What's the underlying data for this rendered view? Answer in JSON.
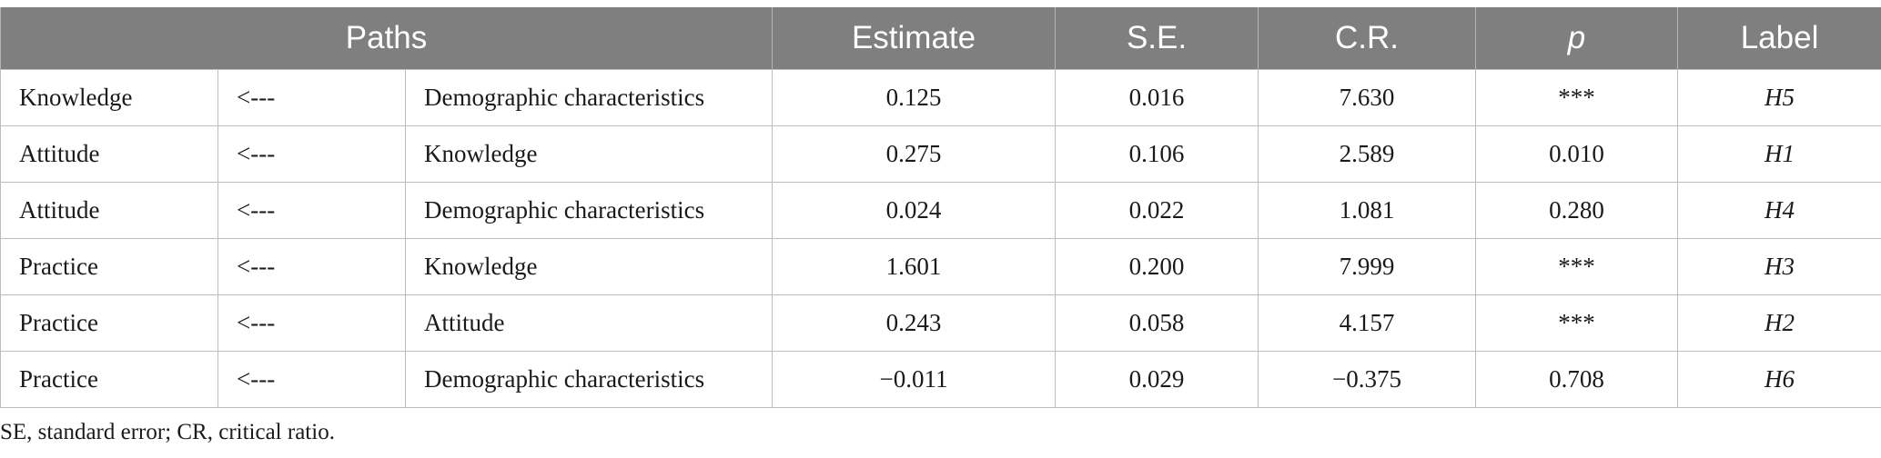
{
  "table": {
    "headers": {
      "paths": "Paths",
      "estimate": "Estimate",
      "se": "S.E.",
      "cr": "C.R.",
      "p": "p",
      "label": "Label"
    },
    "rows": [
      [
        "Knowledge",
        "<---",
        "Demographic characteristics",
        "0.125",
        "0.016",
        "7.630",
        "***",
        "H5"
      ],
      [
        "Attitude",
        "<---",
        "Knowledge",
        "0.275",
        "0.106",
        "2.589",
        "0.010",
        "H1"
      ],
      [
        "Attitude",
        "<---",
        "Demographic characteristics",
        "0.024",
        "0.022",
        "1.081",
        "0.280",
        "H4"
      ],
      [
        "Practice",
        "<---",
        "Knowledge",
        "1.601",
        "0.200",
        "7.999",
        "***",
        "H3"
      ],
      [
        "Practice",
        "<---",
        "Attitude",
        "0.243",
        "0.058",
        "4.157",
        "***",
        "H2"
      ],
      [
        "Practice",
        "<---",
        "Demographic characteristics",
        "−0.011",
        "0.029",
        "−0.375",
        "0.708",
        "H6"
      ]
    ]
  },
  "footnote": "SE, standard error; CR, critical ratio.",
  "colors": {
    "header_bg": "#7f7f7f",
    "header_text": "#ffffff",
    "border": "#bdbdbd"
  }
}
